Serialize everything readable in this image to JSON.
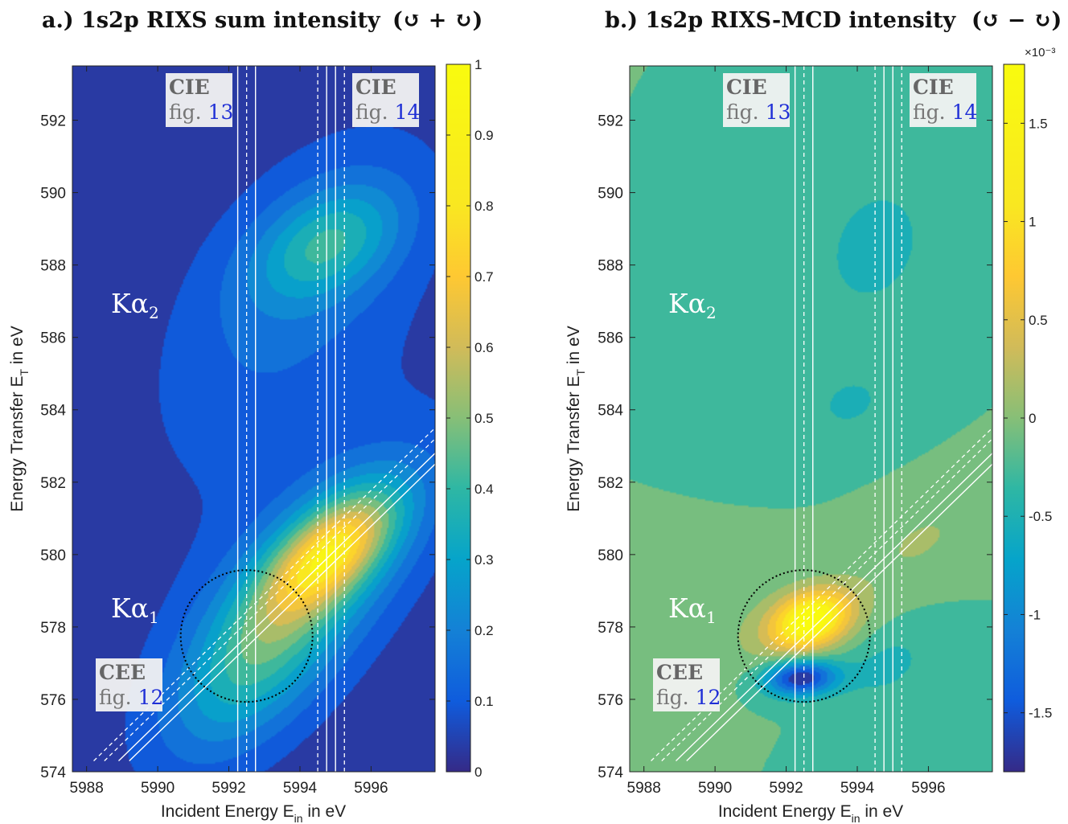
{
  "chart_data": [
    {
      "type": "heatmap",
      "panel": "a.)",
      "title": "a.)  1s2p RIXS sum intensity",
      "title_symbols": "(↺ + ↻)",
      "xlabel": "Incident Energy E",
      "xlabel_sub": "in",
      "xlabel_suffix": " in eV",
      "ylabel": "Energy Transfer E",
      "ylabel_sub": "T",
      "ylabel_suffix": " in eV",
      "xlim": [
        5987.6,
        5997.8
      ],
      "ylim": [
        574,
        593.5
      ],
      "xticks": [
        5988,
        5990,
        5992,
        5994,
        5996
      ],
      "yticks": [
        574,
        576,
        578,
        580,
        582,
        584,
        586,
        588,
        590,
        592
      ],
      "colorbar": {
        "min": 0,
        "max": 1,
        "ticks": [
          "0",
          "0.1",
          "0.2",
          "0.3",
          "0.4",
          "0.5",
          "0.6",
          "0.7",
          "0.8",
          "0.9",
          "1"
        ],
        "multiplier": ""
      },
      "background_value": 0,
      "features": [
        {
          "x": 5992.8,
          "y": 577.2,
          "sx": 1.6,
          "sy": 1.8,
          "rho": 0.55,
          "amp": 0.28
        },
        {
          "x": 5994.9,
          "y": 580.1,
          "sx": 1.3,
          "sy": 1.2,
          "rho": 0.6,
          "amp": 0.62
        },
        {
          "x": 5994.4,
          "y": 579.2,
          "sx": 2.5,
          "sy": 2.6,
          "rho": 0.7,
          "amp": 0.22
        },
        {
          "x": 5994.8,
          "y": 588.6,
          "sx": 1.4,
          "sy": 1.1,
          "rho": 0.4,
          "amp": 0.3
        },
        {
          "x": 5993.8,
          "y": 587.5,
          "sx": 2.8,
          "sy": 3.2,
          "rho": 0.55,
          "amp": 0.14
        },
        {
          "x": 5993.5,
          "y": 580.5,
          "sx": 3.8,
          "sy": 6.5,
          "rho": 0.55,
          "amp": 0.06
        }
      ],
      "cie_lines": [
        5992.25,
        5992.75,
        5994.75,
        5995.0
      ],
      "cie_lines_dashed": [
        5992.5,
        5994.5,
        5995.25
      ],
      "cee_lines": [
        {
          "x0": 5988.9,
          "y0": 574.3,
          "x1": 5997.8,
          "y1": 582.8
        },
        {
          "x0": 5989.2,
          "y0": 574.3,
          "x1": 5997.8,
          "y1": 582.5
        }
      ],
      "cee_lines_dashed": [
        {
          "x0": 5988.2,
          "y0": 574.3,
          "x1": 5997.8,
          "y1": 583.5
        },
        {
          "x0": 5988.5,
          "y0": 574.3,
          "x1": 5997.8,
          "y1": 583.2
        }
      ],
      "circle": {
        "x": 5992.5,
        "y": 577.75,
        "r_pixels_note": ""
      },
      "annotations": {
        "ka2": {
          "label": "Kα",
          "sub": "2"
        },
        "ka1": {
          "label": "Kα",
          "sub": "1"
        },
        "cie_left": {
          "head": "CIE",
          "fig": "fig.",
          "num": "13"
        },
        "cie_right": {
          "head": "CIE",
          "fig": "fig.",
          "num": "14"
        },
        "cee": {
          "head": "CEE",
          "fig": "fig.",
          "num": "12"
        }
      }
    },
    {
      "type": "heatmap",
      "panel": "b.)",
      "title": "b.)  1s2p RIXS-MCD intensity",
      "title_symbols": "(↺ − ↻)",
      "xlabel": "Incident Energy E",
      "xlabel_sub": "in",
      "xlabel_suffix": " in eV",
      "ylabel": "Energy Transfer E",
      "ylabel_sub": "T",
      "ylabel_suffix": " in eV",
      "xlim": [
        5987.6,
        5997.8
      ],
      "ylim": [
        574,
        593.5
      ],
      "xticks": [
        5988,
        5990,
        5992,
        5994,
        5996
      ],
      "yticks": [
        574,
        576,
        578,
        580,
        582,
        584,
        586,
        588,
        590,
        592
      ],
      "colorbar": {
        "min": -1.8,
        "max": 1.8,
        "ticks": [
          "-1.5",
          "-1",
          "-0.5",
          "0",
          "0.5",
          "1",
          "1.5"
        ],
        "multiplier": "×10⁻³"
      },
      "background_value": 0,
      "features": [
        {
          "x": 5992.7,
          "y": 578.2,
          "sx": 0.75,
          "sy": 0.55,
          "rho": 0.3,
          "amp": 1.75
        },
        {
          "x": 5992.4,
          "y": 576.6,
          "sx": 0.7,
          "sy": 0.35,
          "rho": 0.1,
          "amp": -1.85
        },
        {
          "x": 5992.3,
          "y": 578.0,
          "sx": 1.6,
          "sy": 0.9,
          "rho": 0.3,
          "amp": 0.35
        },
        {
          "x": 5995.8,
          "y": 580.4,
          "sx": 1.2,
          "sy": 0.9,
          "rho": 0.5,
          "amp": 0.28
        },
        {
          "x": 5994.5,
          "y": 588.5,
          "sx": 1.0,
          "sy": 1.2,
          "rho": 0.2,
          "amp": -0.45
        },
        {
          "x": 5993.8,
          "y": 584.2,
          "sx": 1.0,
          "sy": 0.8,
          "rho": 0.2,
          "amp": -0.3
        },
        {
          "x": 5994.8,
          "y": 577.0,
          "sx": 1.0,
          "sy": 0.8,
          "rho": 0.3,
          "amp": -0.35
        }
      ],
      "cie_lines": [
        5992.25,
        5992.75,
        5994.75,
        5995.0
      ],
      "cie_lines_dashed": [
        5992.5,
        5994.5,
        5995.25
      ],
      "cee_lines": [
        {
          "x0": 5988.9,
          "y0": 574.3,
          "x1": 5997.8,
          "y1": 582.8
        },
        {
          "x0": 5989.2,
          "y0": 574.3,
          "x1": 5997.8,
          "y1": 582.5
        }
      ],
      "cee_lines_dashed": [
        {
          "x0": 5988.2,
          "y0": 574.3,
          "x1": 5997.8,
          "y1": 583.5
        },
        {
          "x0": 5988.5,
          "y0": 574.3,
          "x1": 5997.8,
          "y1": 583.2
        }
      ],
      "circle": {
        "x": 5992.5,
        "y": 577.75,
        "r_pixels_note": ""
      },
      "annotations": {
        "ka2": {
          "label": "Kα",
          "sub": "2"
        },
        "ka1": {
          "label": "Kα",
          "sub": "1"
        },
        "cie_left": {
          "head": "CIE",
          "fig": "fig.",
          "num": "13"
        },
        "cie_right": {
          "head": "CIE",
          "fig": "fig.",
          "num": "14"
        },
        "cee": {
          "head": "CEE",
          "fig": "fig.",
          "num": "12"
        }
      }
    }
  ],
  "colors": {
    "left_arrow": "#e8242a",
    "right_arrow": "#2fa32f",
    "fig_number": "#1f2fd6"
  }
}
